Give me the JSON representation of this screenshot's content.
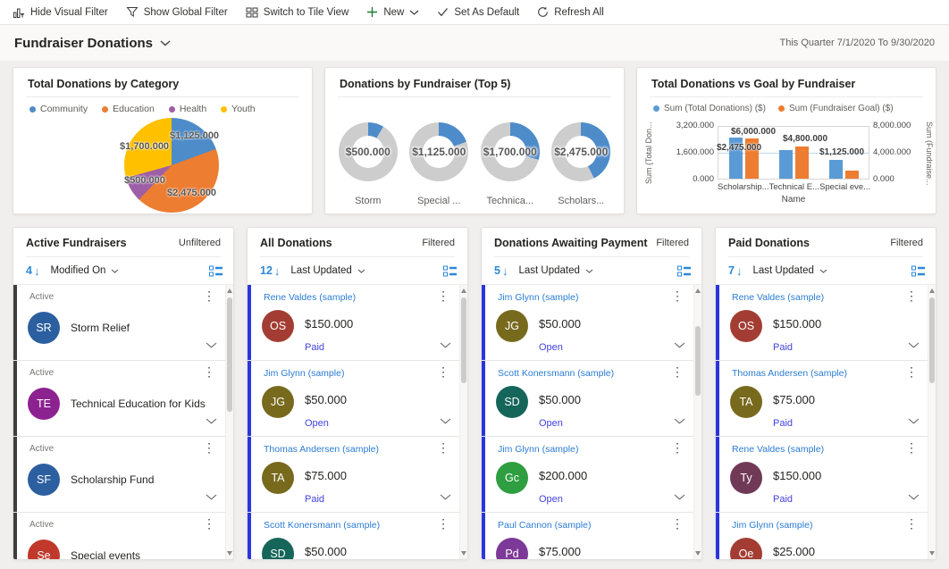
{
  "toolbar": {
    "items": [
      {
        "label": "Hide Visual Filter"
      },
      {
        "label": "Show Global Filter"
      },
      {
        "label": "Switch to Tile View"
      },
      {
        "label": "New"
      },
      {
        "label": "Set As Default"
      },
      {
        "label": "Refresh All"
      }
    ]
  },
  "header": {
    "title": "Fundraiser Donations",
    "date_range": "This Quarter 7/1/2020 To 9/30/2020"
  },
  "charts": {
    "pie": {
      "title": "Total Donations by Category",
      "legend": [
        {
          "label": "Community",
          "color": "#4e8cc9"
        },
        {
          "label": "Education",
          "color": "#ed7d31"
        },
        {
          "label": "Health",
          "color": "#9e5fa7"
        },
        {
          "label": "Youth",
          "color": "#ffc000"
        }
      ]
    },
    "donuts": {
      "title": "Donations by Fundraiser (Top 5)"
    },
    "bars": {
      "title": "Total Donations vs Goal by Fundraiser",
      "legend": [
        {
          "label": "Sum (Total Donations) ($)",
          "color": "#5b9bd5"
        },
        {
          "label": "Sum (Fundraiser Goal) ($)",
          "color": "#ed7d31"
        }
      ]
    }
  },
  "chart_data": [
    {
      "type": "pie",
      "title": "Total Donations by Category",
      "categories": [
        "Community",
        "Education",
        "Health",
        "Youth"
      ],
      "values": [
        1125000,
        2475000,
        500000,
        1700000
      ],
      "labels": [
        "$1,125.000",
        "$2,475.000",
        "$500.000",
        "$1,700.000"
      ],
      "colors": [
        "#4e8cc9",
        "#ed7d31",
        "#9e5fa7",
        "#ffc000"
      ],
      "legend_position": "top"
    },
    {
      "type": "pie",
      "subtype": "donut-multiples",
      "title": "Donations by Fundraiser (Top 5)",
      "total": 5800000,
      "color": "#4e8cc9",
      "track_color": "#cdcdcd",
      "items": [
        {
          "amount": "$500.000",
          "value": 500000,
          "label": "Storm"
        },
        {
          "amount": "$1,125.000",
          "value": 1125000,
          "label": "Special ..."
        },
        {
          "amount": "$1,700.000",
          "value": 1700000,
          "label": "Technica..."
        },
        {
          "amount": "$2,475.000",
          "value": 2475000,
          "label": "Scholars..."
        }
      ]
    },
    {
      "type": "bar",
      "title": "Total Donations vs Goal by Fundraiser",
      "categories": [
        "Scholarship...",
        "Technical E...",
        "Special eve..."
      ],
      "series": [
        {
          "name": "Sum (Total Donations) ($)",
          "color": "#5b9bd5",
          "axis": "left",
          "values": [
            2475000,
            1700000,
            1125000
          ],
          "labels": [
            "$2,475.000",
            null,
            "$1,125.000"
          ]
        },
        {
          "name": "Sum (Fundraiser Goal) ($)",
          "color": "#ed7d31",
          "axis": "right",
          "values": [
            6000000,
            4800000,
            1200000
          ],
          "labels": [
            "$6,000.000",
            "$4,800.000",
            null
          ]
        }
      ],
      "left_axis": {
        "title": "Sum (Total Don...",
        "ticks": [
          "3,200.000",
          "1,600.000",
          "0.000"
        ],
        "max": 3200000
      },
      "right_axis": {
        "title": "Sum (Fundraise...",
        "ticks": [
          "8,000.000",
          "4,000.000",
          "0.000"
        ],
        "max": 8000000
      },
      "xlabel": "Name",
      "grid": "horizontal-midline"
    }
  ],
  "list_cards": [
    {
      "title": "Active Fundraisers",
      "filter_status": "Unfiltered",
      "count": "4",
      "sort_label": "Modified On",
      "items": [
        {
          "status_label": "Active",
          "initials": "SR",
          "avatar_color": "#2b5f9f",
          "name": "Storm Relief"
        },
        {
          "status_label": "Active",
          "initials": "TE",
          "avatar_color": "#8c2290",
          "name": "Technical Education for Kids"
        },
        {
          "status_label": "Active",
          "initials": "SF",
          "avatar_color": "#2b5f9f",
          "name": "Scholarship Fund"
        },
        {
          "status_label": "Active",
          "initials": "Se",
          "avatar_color": "#c0392b",
          "name": "Special events"
        }
      ]
    },
    {
      "title": "All Donations",
      "filter_status": "Filtered",
      "count": "12",
      "sort_label": "Last Updated",
      "items": [
        {
          "name": "Rene Valdes (sample)",
          "initials": "OS",
          "avatar_color": "#a33d33",
          "amount": "$150.000",
          "status": "Paid"
        },
        {
          "name": "Jim Glynn (sample)",
          "initials": "JG",
          "avatar_color": "#776a1d",
          "amount": "$50.000",
          "status": "Open"
        },
        {
          "name": "Thomas Andersen (sample)",
          "initials": "TA",
          "avatar_color": "#776a1d",
          "amount": "$75.000",
          "status": "Paid"
        },
        {
          "name": "Scott Konersmann (sample)",
          "initials": "SD",
          "avatar_color": "#16655a",
          "amount": "$50.000"
        }
      ]
    },
    {
      "title": "Donations Awaiting Payment",
      "filter_status": "Filtered",
      "count": "5",
      "sort_label": "Last Updated",
      "items": [
        {
          "name": "Jim Glynn (sample)",
          "initials": "JG",
          "avatar_color": "#776a1d",
          "amount": "$50.000",
          "status": "Open"
        },
        {
          "name": "Scott Konersmann (sample)",
          "initials": "SD",
          "avatar_color": "#16655a",
          "amount": "$50.000",
          "status": "Open"
        },
        {
          "name": "Jim Glynn (sample)",
          "initials": "Gc",
          "avatar_color": "#2e9e40",
          "amount": "$200.000",
          "status": "Open"
        },
        {
          "name": "Paul Cannon (sample)",
          "initials": "Pd",
          "avatar_color": "#7d3997",
          "amount": "$75.000"
        }
      ]
    },
    {
      "title": "Paid Donations",
      "filter_status": "Filtered",
      "count": "7",
      "sort_label": "Last Updated",
      "items": [
        {
          "name": "Rene Valdes (sample)",
          "initials": "OS",
          "avatar_color": "#a33d33",
          "amount": "$150.000",
          "status": "Paid"
        },
        {
          "name": "Thomas Andersen (sample)",
          "initials": "TA",
          "avatar_color": "#776a1d",
          "amount": "$75.000",
          "status": "Paid"
        },
        {
          "name": "Rene Valdes (sample)",
          "initials": "Ty",
          "avatar_color": "#703a57",
          "amount": "$150.000",
          "status": "Paid"
        },
        {
          "name": "Jim Glynn (sample)",
          "initials": "Oe",
          "avatar_color": "#a33d33",
          "amount": "$25.000"
        }
      ]
    }
  ]
}
